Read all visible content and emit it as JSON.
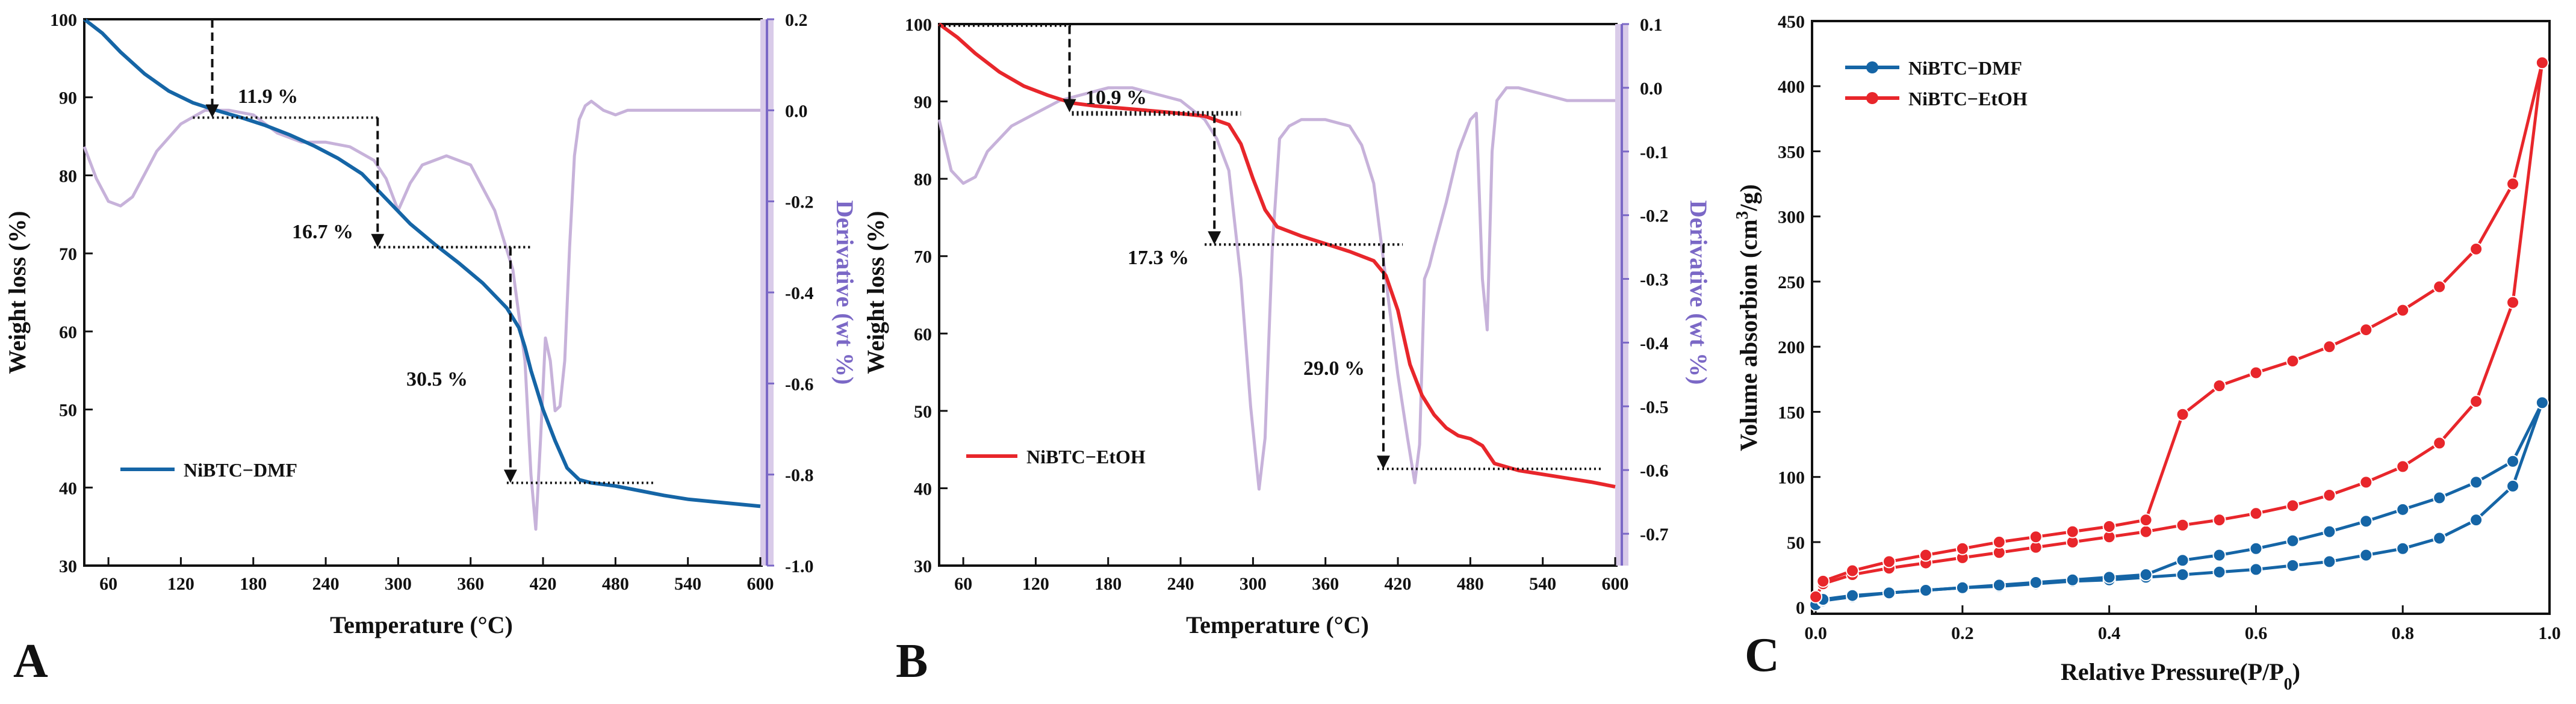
{
  "figure": {
    "panels": [
      {
        "label": "A",
        "xlabel": "Temperature (°C)",
        "ylabel": "Weight loss (%)",
        "y2label": "Derivative (wt %)",
        "legend": "NiBTC−DMF",
        "color": "#1565a6",
        "deriv_color": "#c7b2da",
        "annotations": [
          "11.9 %",
          "16.7 %",
          "30.5 %"
        ]
      },
      {
        "label": "B",
        "xlabel": "Temperature (°C)",
        "ylabel": "Weight loss (%)",
        "y2label": "Derivative (wt %)",
        "legend": "NiBTC−EtOH",
        "color": "#e8262b",
        "deriv_color": "#c7b2da",
        "annotations": [
          "10.9 %",
          "17.3 %",
          "29.0 %"
        ]
      },
      {
        "label": "C",
        "xlabel": "Relative Pressure(P/P0)",
        "ylabel": "Volume absorbion (cm3/g)",
        "legend": [
          "NiBTC−DMF",
          "NiBTC−EtOH"
        ],
        "colors": [
          "#1565a6",
          "#e8262b"
        ]
      }
    ]
  },
  "chart_data": [
    {
      "type": "line",
      "title": "A",
      "xlabel": "Temperature (°C)",
      "ylabel": "Weight loss (%)",
      "y2label": "Derivative (wt %)",
      "xlim": [
        40,
        600
      ],
      "ylim": [
        30,
        100
      ],
      "y2lim": [
        -1.0,
        0.2
      ],
      "xticks": [
        60,
        120,
        180,
        240,
        300,
        360,
        420,
        480,
        540,
        600
      ],
      "yticks": [
        30,
        40,
        50,
        60,
        70,
        80,
        90,
        100
      ],
      "y2ticks": [
        "0.2",
        "0.0",
        "-0.2",
        "-0.4",
        "-0.6",
        "-0.8",
        "-1.0"
      ],
      "series": [
        {
          "name": "NiBTC−DMF",
          "axis": "left",
          "x": [
            40,
            55,
            70,
            90,
            110,
            130,
            150,
            170,
            190,
            210,
            230,
            250,
            270,
            290,
            310,
            330,
            350,
            370,
            390,
            400,
            405,
            410,
            415,
            420,
            430,
            440,
            450,
            460,
            480,
            500,
            520,
            540,
            560,
            580,
            600
          ],
          "values": [
            100,
            98.2,
            95.8,
            93,
            90.8,
            89.3,
            88.3,
            87.4,
            86.4,
            85.2,
            83.8,
            82.2,
            80.2,
            77,
            73.8,
            71.2,
            68.8,
            66.2,
            63,
            60.5,
            58,
            55,
            52.5,
            50,
            46,
            42.5,
            41,
            40.6,
            40.2,
            39.6,
            39,
            38.5,
            38.2,
            37.9,
            37.6
          ]
        },
        {
          "name": "Derivative",
          "axis": "right",
          "x": [
            40,
            50,
            60,
            70,
            80,
            90,
            100,
            120,
            140,
            160,
            180,
            200,
            220,
            240,
            260,
            280,
            290,
            300,
            310,
            320,
            340,
            360,
            380,
            395,
            405,
            410,
            414,
            418,
            422,
            426,
            430,
            434,
            438,
            442,
            446,
            450,
            455,
            460,
            470,
            480,
            490,
            500,
            520,
            540,
            560,
            580,
            600
          ],
          "values": [
            -0.08,
            -0.15,
            -0.2,
            -0.21,
            -0.19,
            -0.14,
            -0.09,
            -0.03,
            0.0,
            0.0,
            -0.01,
            -0.05,
            -0.07,
            -0.07,
            -0.08,
            -0.11,
            -0.15,
            -0.22,
            -0.16,
            -0.12,
            -0.1,
            -0.12,
            -0.22,
            -0.35,
            -0.55,
            -0.8,
            -0.92,
            -0.72,
            -0.5,
            -0.55,
            -0.66,
            -0.65,
            -0.55,
            -0.3,
            -0.1,
            -0.02,
            0.01,
            0.02,
            0.0,
            -0.01,
            0.0,
            0.0,
            0.0,
            0.0,
            0.0,
            0.0,
            0.0
          ]
        }
      ],
      "annotations": [
        "11.9 %",
        "16.7 %",
        "30.5 %"
      ]
    },
    {
      "type": "line",
      "title": "B",
      "xlabel": "Temperature (°C)",
      "ylabel": "Weight loss (%)",
      "y2label": "Derivative (wt %)",
      "xlim": [
        40,
        600
      ],
      "ylim": [
        30,
        100
      ],
      "y2lim": [
        -0.75,
        0.1
      ],
      "xticks": [
        60,
        120,
        180,
        240,
        300,
        360,
        420,
        480,
        540,
        600
      ],
      "yticks": [
        30,
        40,
        50,
        60,
        70,
        80,
        90,
        100
      ],
      "y2ticks": [
        "0.1",
        "0.0",
        "-0.1",
        "-0.2",
        "-0.3",
        "-0.4",
        "-0.5",
        "-0.6",
        "-0.7"
      ],
      "series": [
        {
          "name": "NiBTC−EtOH",
          "axis": "left",
          "x": [
            40,
            55,
            70,
            90,
            110,
            130,
            150,
            170,
            200,
            230,
            260,
            280,
            290,
            300,
            310,
            320,
            340,
            360,
            380,
            400,
            410,
            420,
            430,
            440,
            450,
            460,
            470,
            480,
            490,
            500,
            520,
            540,
            560,
            580,
            600
          ],
          "values": [
            100,
            98.3,
            96.2,
            93.8,
            92,
            90.8,
            89.8,
            89.4,
            89,
            88.6,
            88.1,
            87,
            84.5,
            80,
            76,
            73.8,
            72.6,
            71.6,
            70.6,
            69.4,
            67.5,
            63,
            56,
            52,
            49.5,
            47.8,
            46.8,
            46.4,
            45.5,
            43.2,
            42.3,
            41.8,
            41.3,
            40.8,
            40.2
          ]
        },
        {
          "name": "Derivative",
          "axis": "right",
          "x": [
            40,
            50,
            60,
            70,
            80,
            100,
            120,
            140,
            160,
            180,
            200,
            220,
            240,
            260,
            270,
            280,
            290,
            298,
            305,
            310,
            316,
            322,
            330,
            340,
            360,
            380,
            390,
            400,
            410,
            420,
            428,
            434,
            438,
            442,
            446,
            450,
            460,
            470,
            480,
            485,
            490,
            494,
            498,
            502,
            510,
            520,
            540,
            560,
            580,
            600
          ],
          "values": [
            -0.05,
            -0.13,
            -0.15,
            -0.14,
            -0.1,
            -0.06,
            -0.04,
            -0.02,
            -0.01,
            0.0,
            0.0,
            -0.01,
            -0.02,
            -0.05,
            -0.08,
            -0.13,
            -0.3,
            -0.5,
            -0.63,
            -0.55,
            -0.25,
            -0.08,
            -0.06,
            -0.05,
            -0.05,
            -0.06,
            -0.09,
            -0.15,
            -0.3,
            -0.45,
            -0.55,
            -0.62,
            -0.56,
            -0.3,
            -0.28,
            -0.25,
            -0.18,
            -0.1,
            -0.05,
            -0.04,
            -0.3,
            -0.38,
            -0.1,
            -0.02,
            0.0,
            0.0,
            -0.01,
            -0.02,
            -0.02,
            -0.02
          ]
        }
      ],
      "annotations": [
        "10.9 %",
        "17.3 %",
        "29.0 %"
      ]
    },
    {
      "type": "line",
      "title": "C",
      "xlabel": "Relative Pressure(P/P0)",
      "ylabel": "Volume absorbion (cm3/g)",
      "xlim": [
        0,
        1.0
      ],
      "ylim": [
        0,
        450
      ],
      "xticks": [
        0.0,
        0.2,
        0.4,
        0.6,
        0.8,
        1.0
      ],
      "yticks": [
        0,
        50,
        100,
        150,
        200,
        250,
        300,
        350,
        400,
        450
      ],
      "series": [
        {
          "name": "NiBTC−DMF",
          "branch": "adsorption",
          "x": [
            0.0,
            0.01,
            0.05,
            0.1,
            0.15,
            0.2,
            0.25,
            0.3,
            0.35,
            0.4,
            0.45,
            0.5,
            0.55,
            0.6,
            0.65,
            0.7,
            0.75,
            0.8,
            0.85,
            0.9,
            0.95,
            0.99
          ],
          "values": [
            2,
            5,
            8,
            11,
            13,
            15,
            16,
            18,
            20,
            21,
            23,
            25,
            27,
            29,
            32,
            35,
            40,
            45,
            53,
            67,
            93,
            157
          ]
        },
        {
          "name": "NiBTC−DMF",
          "branch": "desorption",
          "x": [
            0.99,
            0.95,
            0.9,
            0.85,
            0.8,
            0.75,
            0.7,
            0.65,
            0.6,
            0.55,
            0.5,
            0.45,
            0.4,
            0.35,
            0.3,
            0.25,
            0.2,
            0.15,
            0.1,
            0.05,
            0.01
          ],
          "values": [
            157,
            112,
            96,
            84,
            75,
            66,
            58,
            51,
            45,
            40,
            36,
            25,
            23,
            21,
            19,
            17,
            15,
            13,
            11,
            9,
            6
          ]
        },
        {
          "name": "NiBTC−EtOH",
          "branch": "adsorption",
          "x": [
            0.0,
            0.01,
            0.05,
            0.1,
            0.15,
            0.2,
            0.25,
            0.3,
            0.35,
            0.4,
            0.45,
            0.5,
            0.55,
            0.6,
            0.65,
            0.7,
            0.75,
            0.8,
            0.85,
            0.9,
            0.95,
            0.99
          ],
          "values": [
            8,
            18,
            25,
            30,
            34,
            38,
            42,
            46,
            50,
            54,
            58,
            63,
            67,
            72,
            78,
            86,
            96,
            108,
            126,
            158,
            234,
            418
          ]
        },
        {
          "name": "NiBTC−EtOH",
          "branch": "desorption",
          "x": [
            0.99,
            0.95,
            0.9,
            0.85,
            0.8,
            0.75,
            0.7,
            0.65,
            0.6,
            0.55,
            0.5,
            0.45,
            0.4,
            0.35,
            0.3,
            0.25,
            0.2,
            0.15,
            0.1,
            0.05,
            0.01
          ],
          "values": [
            418,
            325,
            275,
            246,
            228,
            213,
            200,
            189,
            180,
            170,
            148,
            67,
            62,
            58,
            54,
            50,
            45,
            40,
            35,
            28,
            20
          ]
        }
      ],
      "legend": [
        "NiBTC−DMF",
        "NiBTC−EtOH"
      ]
    }
  ]
}
